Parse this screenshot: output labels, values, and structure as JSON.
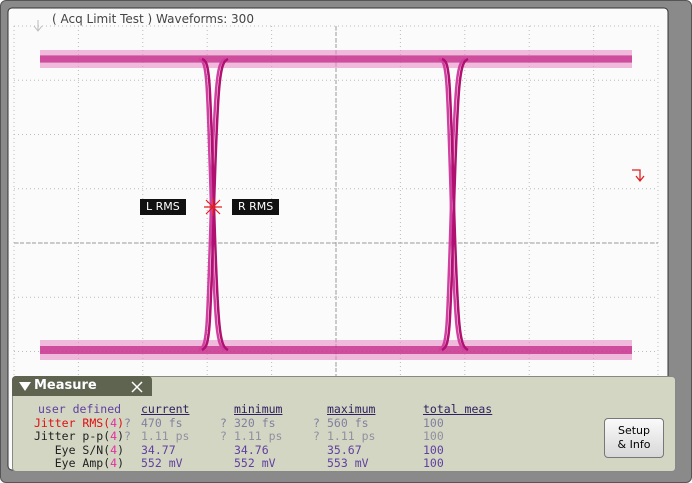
{
  "header": {
    "status": "( Acq Limit Test ) Waveforms: 300"
  },
  "markers": {
    "left": "L RMS",
    "right": "R RMS"
  },
  "measure": {
    "title": "Measure",
    "columns": [
      "user defined",
      "current",
      "minimum",
      "maximum",
      "total meas"
    ],
    "rows": [
      {
        "name": [
          "Jitter RMS(",
          "4",
          ")"
        ],
        "flag": "?",
        "current": "470 fs",
        "min_flag": "?",
        "minimum": "320 fs",
        "max_flag": "?",
        "maximum": "560 fs",
        "total": "100"
      },
      {
        "name": [
          "Jitter p-p(",
          "4",
          ")"
        ],
        "flag": "?",
        "current": "1.11 ps",
        "min_flag": "?",
        "minimum": "1.11 ps",
        "max_flag": "?",
        "maximum": "1.11 ps",
        "total": "100"
      },
      {
        "name": [
          "Eye S/N(",
          "4",
          ")"
        ],
        "current": "34.77",
        "minimum": "34.76",
        "maximum": "35.67",
        "total": "100"
      },
      {
        "name": [
          "Eye Amp(",
          "4",
          ")"
        ],
        "current": "552 mV",
        "minimum": "552 mV",
        "maximum": "553 mV",
        "total": "100"
      }
    ],
    "button": [
      "Setup",
      "& Info"
    ]
  }
}
